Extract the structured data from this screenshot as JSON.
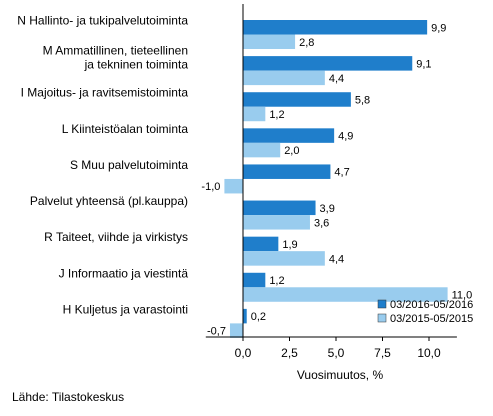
{
  "chart_data": {
    "type": "bar",
    "orientation": "horizontal",
    "categories": [
      [
        "N Hallinto- ja tukipalvelutoiminta"
      ],
      [
        "M Ammatillinen, tieteellinen",
        "ja tekninen toiminta"
      ],
      [
        "I Majoitus- ja ravitsemistoiminta"
      ],
      [
        "L Kiinteistöalan toiminta"
      ],
      [
        "S Muu palvelutoiminta"
      ],
      [
        "Palvelut yhteensä (pl.kauppa)"
      ],
      [
        "R Taiteet, viihde ja virkistys"
      ],
      [
        "J Informaatio ja viestintä"
      ],
      [
        "H Kuljetus ja varastointi"
      ]
    ],
    "series": [
      {
        "name": "03/2016-05/2016",
        "color": "#1f7ecb",
        "values": [
          9.9,
          9.1,
          5.8,
          4.9,
          4.7,
          3.9,
          1.9,
          1.2,
          0.2
        ],
        "labels": [
          "9,9",
          "9,1",
          "5,8",
          "4,9",
          "4,7",
          "3,9",
          "1,9",
          "1,2",
          "0,2"
        ]
      },
      {
        "name": "03/2015-05/2015",
        "color": "#99ccee",
        "values": [
          2.8,
          4.4,
          1.2,
          2.0,
          -1.0,
          3.6,
          4.4,
          11.0,
          -0.7
        ],
        "labels": [
          "2,8",
          "4,4",
          "1,2",
          "2,0",
          "-1,0",
          "3,6",
          "4,4",
          "11,0",
          "-0,7"
        ]
      }
    ],
    "xticks": [
      0,
      2.5,
      5,
      7.5,
      10
    ],
    "xtick_labels": [
      "0,0",
      "2,5",
      "5,0",
      "7,5",
      "10,0"
    ],
    "xlim": [
      -2,
      11.5
    ],
    "xlabel": "Vuosimuutos, %",
    "legend_position": "bottom-right",
    "grid": false
  },
  "source": "Lähde: Tilastokeskus"
}
